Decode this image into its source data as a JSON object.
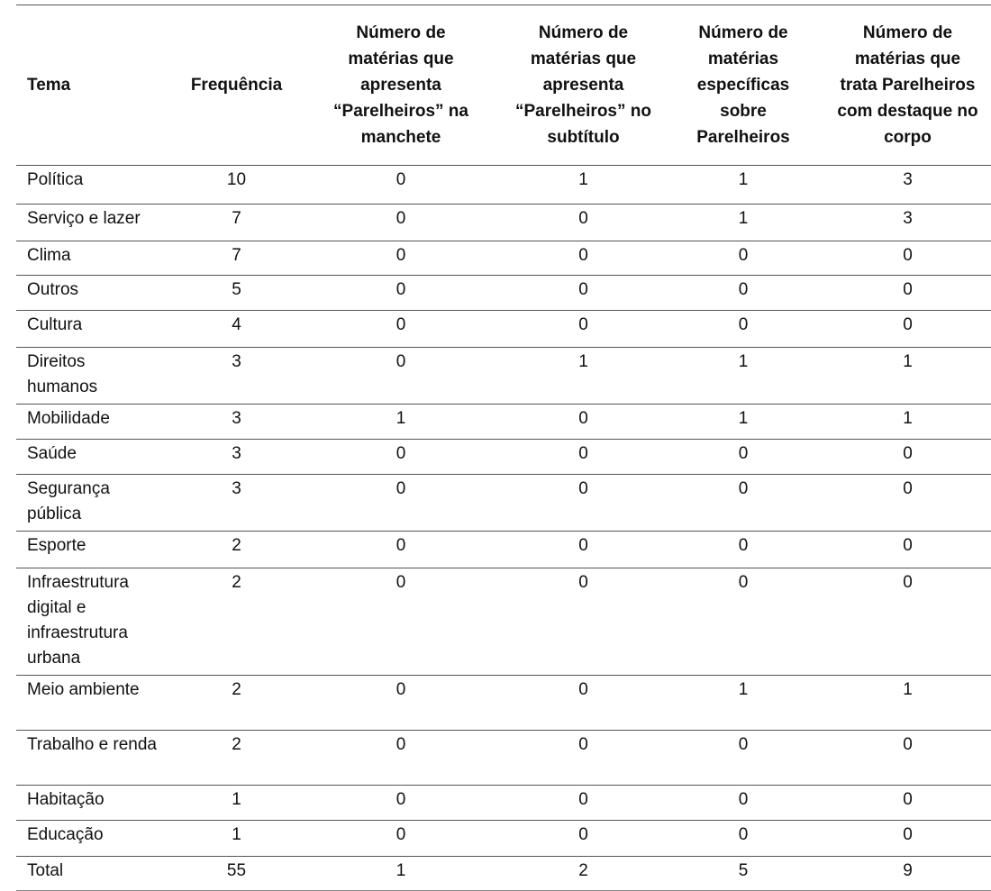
{
  "table": {
    "headers": [
      "Tema",
      "Frequência",
      "Número de matérias que apresenta “Parelheiros” na manchete",
      "Número de matérias que apresenta “Parelheiros” no subtítulo",
      "Número de matérias específicas sobre Parelheiros",
      "Número de matérias que trata Parelheiros com destaque no corpo"
    ],
    "rows": [
      [
        "Política",
        "10",
        "0",
        "1",
        "1",
        "3"
      ],
      [
        "Serviço e lazer",
        "7",
        "0",
        "0",
        "1",
        "3"
      ],
      [
        "Clima",
        "7",
        "0",
        "0",
        "0",
        "0"
      ],
      [
        "Outros",
        "5",
        "0",
        "0",
        "0",
        "0"
      ],
      [
        "Cultura",
        "4",
        "0",
        "0",
        "0",
        "0"
      ],
      [
        "Direitos humanos",
        "3",
        "0",
        "1",
        "1",
        "1"
      ],
      [
        "Mobilidade",
        "3",
        "1",
        "0",
        "1",
        "1"
      ],
      [
        "Saúde",
        "3",
        "0",
        "0",
        "0",
        "0"
      ],
      [
        "Segurança pública",
        "3",
        "0",
        "0",
        "0",
        "0"
      ],
      [
        "Esporte",
        "2",
        "0",
        "0",
        "0",
        "0"
      ],
      [
        "Infraestrutura digital e infraestrutura urbana",
        "2",
        "0",
        "0",
        "0",
        "0"
      ],
      [
        "Meio ambiente",
        "2",
        "0",
        "0",
        "1",
        "1"
      ],
      [
        "Trabalho e renda",
        "2",
        "0",
        "0",
        "0",
        "0"
      ],
      [
        "Habitação",
        "1",
        "0",
        "0",
        "0",
        "0"
      ],
      [
        "Educação",
        "1",
        "0",
        "0",
        "0",
        "0"
      ],
      [
        "Total",
        "55",
        "1",
        "2",
        "5",
        "9"
      ]
    ]
  }
}
